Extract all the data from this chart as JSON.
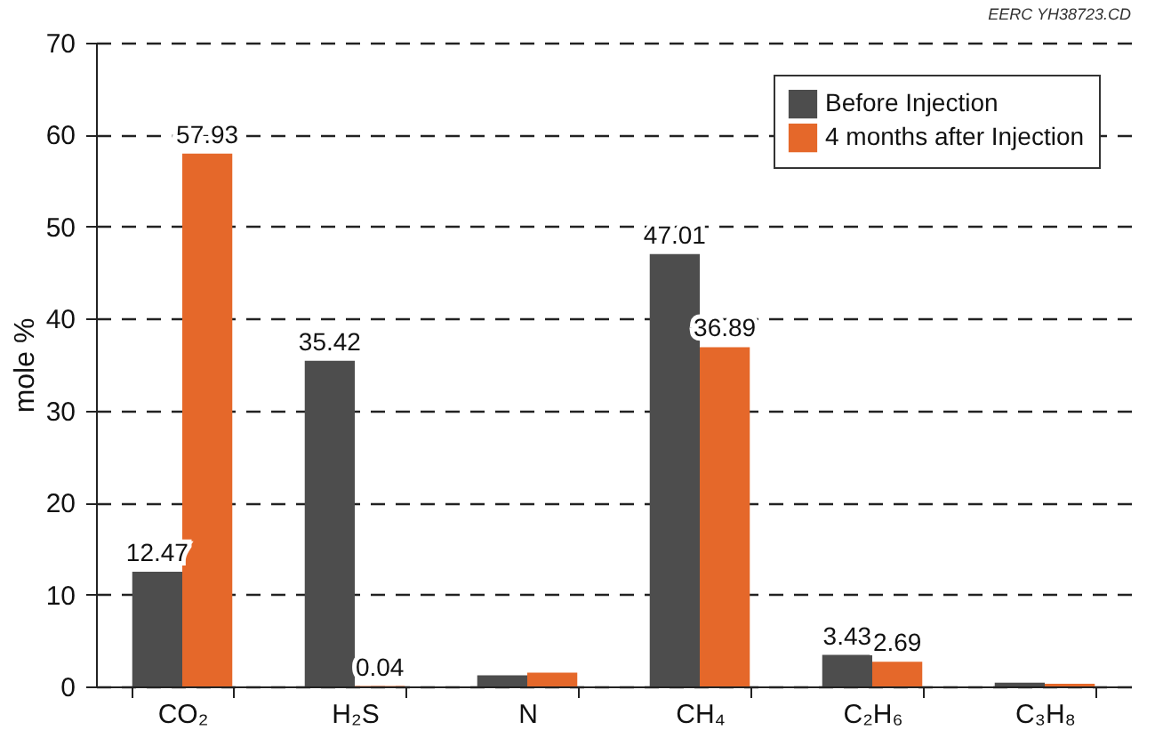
{
  "chart_data": {
    "type": "bar",
    "ylabel": "mole %",
    "categories": [
      "CO₂",
      "H₂S",
      "N",
      "CH₄",
      "C₂H₆",
      "C₃H₈"
    ],
    "series": [
      {
        "name": "Before Injection",
        "color": "#4d4d4d",
        "values": [
          12.47,
          35.42,
          1.2,
          47.01,
          3.43,
          0.4
        ],
        "value_labels": [
          "12.47",
          "35.42",
          null,
          "47.01",
          "3.43",
          null
        ]
      },
      {
        "name": "4 months after Injection",
        "color": "#e5682a",
        "values": [
          57.93,
          0.04,
          1.5,
          36.89,
          2.69,
          0.3
        ],
        "value_labels": [
          "57.93",
          "0.04",
          null,
          "36.89",
          "2.69",
          null
        ]
      }
    ],
    "ylim": [
      0,
      70
    ],
    "yticks": [
      0,
      10,
      20,
      30,
      40,
      50,
      60,
      70
    ],
    "grid": "y",
    "legend": "top right",
    "annotations": [
      "EERC YH38723.CD"
    ]
  }
}
